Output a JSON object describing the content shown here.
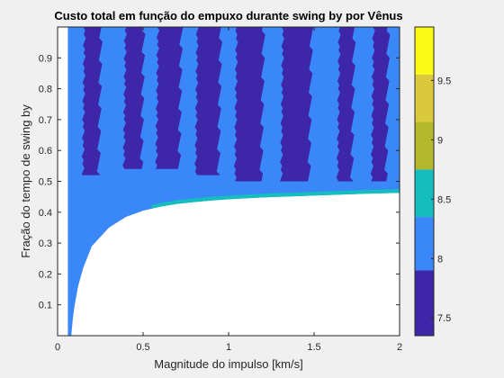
{
  "chart_data": {
    "type": "heatmap",
    "title": "Custo total em função do empuxo durante swing by por Vênus",
    "xlabel": "Magnitude do impulso [km/s]",
    "ylabel": "Fração do tempo de swing by",
    "xlim": [
      0,
      2
    ],
    "ylim": [
      0,
      1
    ],
    "xticks": [
      0,
      0.5,
      1,
      1.5,
      2
    ],
    "xtick_labels": [
      "0",
      "0.5",
      "1",
      "1.5",
      "2"
    ],
    "yticks": [
      0.1,
      0.2,
      0.3,
      0.4,
      0.5,
      0.6,
      0.7,
      0.8,
      0.9
    ],
    "ytick_labels": [
      "0.1",
      "0.2",
      "0.3",
      "0.4",
      "0.5",
      "0.6",
      "0.7",
      "0.8",
      "0.9"
    ],
    "grid": false,
    "background_color": "#ffffff",
    "colorbar": {
      "location": "right",
      "range": [
        7.35,
        9.95
      ],
      "bands": [
        {
          "from": 7.35,
          "to": 7.9,
          "color": "#3e26a8"
        },
        {
          "from": 7.9,
          "to": 8.35,
          "color": "#3987f9"
        },
        {
          "from": 8.35,
          "to": 8.75,
          "color": "#13bebd"
        },
        {
          "from": 8.75,
          "to": 9.15,
          "color": "#b5b72a"
        },
        {
          "from": 9.15,
          "to": 9.55,
          "color": "#dac93a"
        },
        {
          "from": 9.55,
          "to": 9.95,
          "color": "#f9fb14"
        }
      ],
      "ticks": [
        7.5,
        8,
        8.5,
        9,
        9.5
      ],
      "tick_labels": [
        "7.5",
        "8",
        "8.5",
        "9",
        "9.5"
      ]
    },
    "lower_boundary": {
      "x": [
        0.08,
        0.09,
        0.1,
        0.12,
        0.15,
        0.2,
        0.3,
        0.4,
        0.5,
        0.6,
        0.7,
        0.8,
        0.9,
        1.0,
        1.2,
        1.4,
        1.6,
        1.8,
        2.0
      ],
      "y": [
        0.0,
        0.06,
        0.1,
        0.16,
        0.22,
        0.29,
        0.35,
        0.385,
        0.405,
        0.418,
        0.427,
        0.433,
        0.438,
        0.442,
        0.448,
        0.452,
        0.456,
        0.46,
        0.463
      ]
    },
    "regions": [
      {
        "level": 8.0,
        "description": "base region above lower boundary, extends to top",
        "x_range": [
          0.06,
          2.0
        ]
      },
      {
        "level": 7.5,
        "description": "vertical bands above ~0.5",
        "bands": [
          {
            "x": [
              0.14,
              0.25
            ],
            "y": [
              0.52,
              1.0
            ]
          },
          {
            "x": [
              0.38,
              0.5
            ],
            "y": [
              0.54,
              1.0
            ]
          },
          {
            "x": [
              0.57,
              0.72
            ],
            "y": [
              0.54,
              1.0
            ]
          },
          {
            "x": [
              0.8,
              0.95
            ],
            "y": [
              0.52,
              1.0
            ]
          },
          {
            "x": [
              1.03,
              1.2
            ],
            "y": [
              0.5,
              1.0
            ]
          },
          {
            "x": [
              1.3,
              1.48
            ],
            "y": [
              0.5,
              1.0
            ]
          },
          {
            "x": [
              1.63,
              1.73
            ],
            "y": [
              0.5,
              1.0
            ]
          },
          {
            "x": [
              1.83,
              1.93
            ],
            "y": [
              0.5,
              1.0
            ]
          }
        ]
      },
      {
        "level": 8.5,
        "description": "thin strip along lower boundary",
        "x_range": [
          0.55,
          2.0
        ]
      }
    ]
  }
}
